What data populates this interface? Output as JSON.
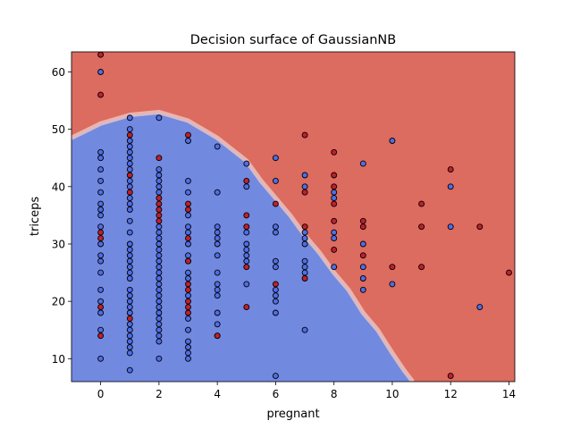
{
  "chart_data": {
    "type": "scatter",
    "title": "Decision surface of GaussianNB",
    "xlabel": "pregnant",
    "ylabel": "triceps",
    "xlim": [
      -1,
      14.2
    ],
    "ylim": [
      6,
      63.5
    ],
    "xticks": [
      0,
      2,
      4,
      6,
      8,
      10,
      12,
      14
    ],
    "yticks": [
      10,
      20,
      30,
      40,
      50,
      60
    ],
    "grid": false,
    "colors": {
      "class_0_region": "#7289e0",
      "class_1_region": "#dc6b60",
      "class_0_point": "#4f6ee6",
      "class_1_point": "#c0202a",
      "point_edge": "#000000"
    },
    "decision_boundary": [
      [
        -1,
        48.5
      ],
      [
        0,
        51
      ],
      [
        1,
        52.5
      ],
      [
        2,
        53
      ],
      [
        3,
        51.5
      ],
      [
        4,
        48.5
      ],
      [
        5,
        44.5
      ],
      [
        5.5,
        41
      ],
      [
        6,
        38
      ],
      [
        6.5,
        35
      ],
      [
        7,
        31.5
      ],
      [
        7.5,
        28.5
      ],
      [
        8,
        25
      ],
      [
        8.5,
        22
      ],
      [
        9,
        18
      ],
      [
        9.5,
        15
      ],
      [
        10,
        11
      ],
      [
        10.4,
        8
      ],
      [
        10.7,
        6
      ]
    ],
    "series": [
      {
        "points": [
          [
            0,
            60
          ],
          [
            0,
            46
          ],
          [
            0,
            45
          ],
          [
            0,
            43
          ],
          [
            0,
            41
          ],
          [
            0,
            39
          ],
          [
            0,
            37
          ],
          [
            0,
            36
          ],
          [
            0,
            35
          ],
          [
            0,
            33
          ],
          [
            0,
            30
          ],
          [
            0,
            28
          ],
          [
            0,
            27
          ],
          [
            0,
            25
          ],
          [
            0,
            22
          ],
          [
            0,
            20
          ],
          [
            0,
            18
          ],
          [
            0,
            15
          ],
          [
            0,
            10
          ],
          [
            1,
            52
          ],
          [
            1,
            50
          ],
          [
            1,
            48
          ],
          [
            1,
            47
          ],
          [
            1,
            46
          ],
          [
            1,
            45
          ],
          [
            1,
            44
          ],
          [
            1,
            43
          ],
          [
            1,
            41
          ],
          [
            1,
            40
          ],
          [
            1,
            38
          ],
          [
            1,
            37
          ],
          [
            1,
            36
          ],
          [
            1,
            34
          ],
          [
            1,
            32
          ],
          [
            1,
            30
          ],
          [
            1,
            29
          ],
          [
            1,
            28
          ],
          [
            1,
            27
          ],
          [
            1,
            26
          ],
          [
            1,
            25
          ],
          [
            1,
            24
          ],
          [
            1,
            22
          ],
          [
            1,
            21
          ],
          [
            1,
            20
          ],
          [
            1,
            19
          ],
          [
            1,
            18
          ],
          [
            1,
            16
          ],
          [
            1,
            15
          ],
          [
            1,
            14
          ],
          [
            1,
            13
          ],
          [
            1,
            12
          ],
          [
            1,
            11
          ],
          [
            1,
            8
          ],
          [
            2,
            52
          ],
          [
            2,
            43
          ],
          [
            2,
            42
          ],
          [
            2,
            41
          ],
          [
            2,
            40
          ],
          [
            2,
            39
          ],
          [
            2,
            33
          ],
          [
            2,
            32
          ],
          [
            2,
            31
          ],
          [
            2,
            30
          ],
          [
            2,
            29
          ],
          [
            2,
            28
          ],
          [
            2,
            27
          ],
          [
            2,
            26
          ],
          [
            2,
            25
          ],
          [
            2,
            24
          ],
          [
            2,
            23
          ],
          [
            2,
            22
          ],
          [
            2,
            21
          ],
          [
            2,
            20
          ],
          [
            2,
            19
          ],
          [
            2,
            18
          ],
          [
            2,
            17
          ],
          [
            2,
            16
          ],
          [
            2,
            15
          ],
          [
            2,
            14
          ],
          [
            2,
            13
          ],
          [
            2,
            10
          ],
          [
            3,
            48
          ],
          [
            3,
            41
          ],
          [
            3,
            39
          ],
          [
            3,
            35
          ],
          [
            3,
            33
          ],
          [
            3,
            32
          ],
          [
            3,
            30
          ],
          [
            3,
            28
          ],
          [
            3,
            27
          ],
          [
            3,
            25
          ],
          [
            3,
            24
          ],
          [
            3,
            21
          ],
          [
            3,
            17
          ],
          [
            3,
            15
          ],
          [
            3,
            13
          ],
          [
            3,
            12
          ],
          [
            3,
            11
          ],
          [
            3,
            10
          ],
          [
            4,
            47
          ],
          [
            4,
            39
          ],
          [
            4,
            33
          ],
          [
            4,
            32
          ],
          [
            4,
            31
          ],
          [
            4,
            30
          ],
          [
            4,
            28
          ],
          [
            4,
            25
          ],
          [
            4,
            23
          ],
          [
            4,
            22
          ],
          [
            4,
            21
          ],
          [
            4,
            18
          ],
          [
            4,
            16
          ],
          [
            4,
            14
          ],
          [
            5,
            44
          ],
          [
            5,
            40
          ],
          [
            5,
            32
          ],
          [
            5,
            30
          ],
          [
            5,
            29
          ],
          [
            5,
            28
          ],
          [
            5,
            27
          ],
          [
            5,
            23
          ],
          [
            6,
            45
          ],
          [
            6,
            41
          ],
          [
            6,
            33
          ],
          [
            6,
            32
          ],
          [
            6,
            27
          ],
          [
            6,
            26
          ],
          [
            6,
            22
          ],
          [
            6,
            21
          ],
          [
            6,
            20
          ],
          [
            6,
            18
          ],
          [
            6,
            7
          ],
          [
            7,
            42
          ],
          [
            7,
            40
          ],
          [
            7,
            32
          ],
          [
            7,
            31
          ],
          [
            7,
            30
          ],
          [
            7,
            27
          ],
          [
            7,
            26
          ],
          [
            7,
            25
          ],
          [
            7,
            15
          ],
          [
            8,
            39
          ],
          [
            8,
            38
          ],
          [
            8,
            32
          ],
          [
            8,
            31
          ],
          [
            8,
            26
          ],
          [
            9,
            44
          ],
          [
            9,
            30
          ],
          [
            9,
            26
          ],
          [
            9,
            24
          ],
          [
            9,
            22
          ],
          [
            10,
            48
          ],
          [
            10,
            23
          ],
          [
            12,
            40
          ],
          [
            12,
            33
          ],
          [
            13,
            19
          ]
        ]
      },
      {
        "points": [
          [
            0,
            63
          ],
          [
            0,
            56
          ],
          [
            0,
            32
          ],
          [
            0,
            31
          ],
          [
            0,
            19
          ],
          [
            0,
            14
          ],
          [
            1,
            49
          ],
          [
            1,
            42
          ],
          [
            1,
            39
          ],
          [
            1,
            17
          ],
          [
            2,
            45
          ],
          [
            2,
            38
          ],
          [
            2,
            37
          ],
          [
            2,
            36
          ],
          [
            2,
            35
          ],
          [
            2,
            34
          ],
          [
            3,
            49
          ],
          [
            3,
            37
          ],
          [
            3,
            36
          ],
          [
            3,
            31
          ],
          [
            3,
            27
          ],
          [
            3,
            23
          ],
          [
            3,
            22
          ],
          [
            3,
            20
          ],
          [
            3,
            19
          ],
          [
            3,
            18
          ],
          [
            4,
            14
          ],
          [
            5,
            41
          ],
          [
            5,
            35
          ],
          [
            5,
            33
          ],
          [
            5,
            26
          ],
          [
            5,
            19
          ],
          [
            6,
            37
          ],
          [
            6,
            23
          ],
          [
            7,
            49
          ],
          [
            7,
            39
          ],
          [
            7,
            33
          ],
          [
            7,
            24
          ],
          [
            8,
            46
          ],
          [
            8,
            42
          ],
          [
            8,
            40
          ],
          [
            8,
            37
          ],
          [
            8,
            34
          ],
          [
            8,
            29
          ],
          [
            9,
            34
          ],
          [
            9,
            33
          ],
          [
            9,
            28
          ],
          [
            10,
            26
          ],
          [
            11,
            37
          ],
          [
            11,
            33
          ],
          [
            11,
            26
          ],
          [
            12,
            43
          ],
          [
            12,
            7
          ],
          [
            13,
            33
          ],
          [
            14,
            25
          ]
        ]
      }
    ]
  }
}
